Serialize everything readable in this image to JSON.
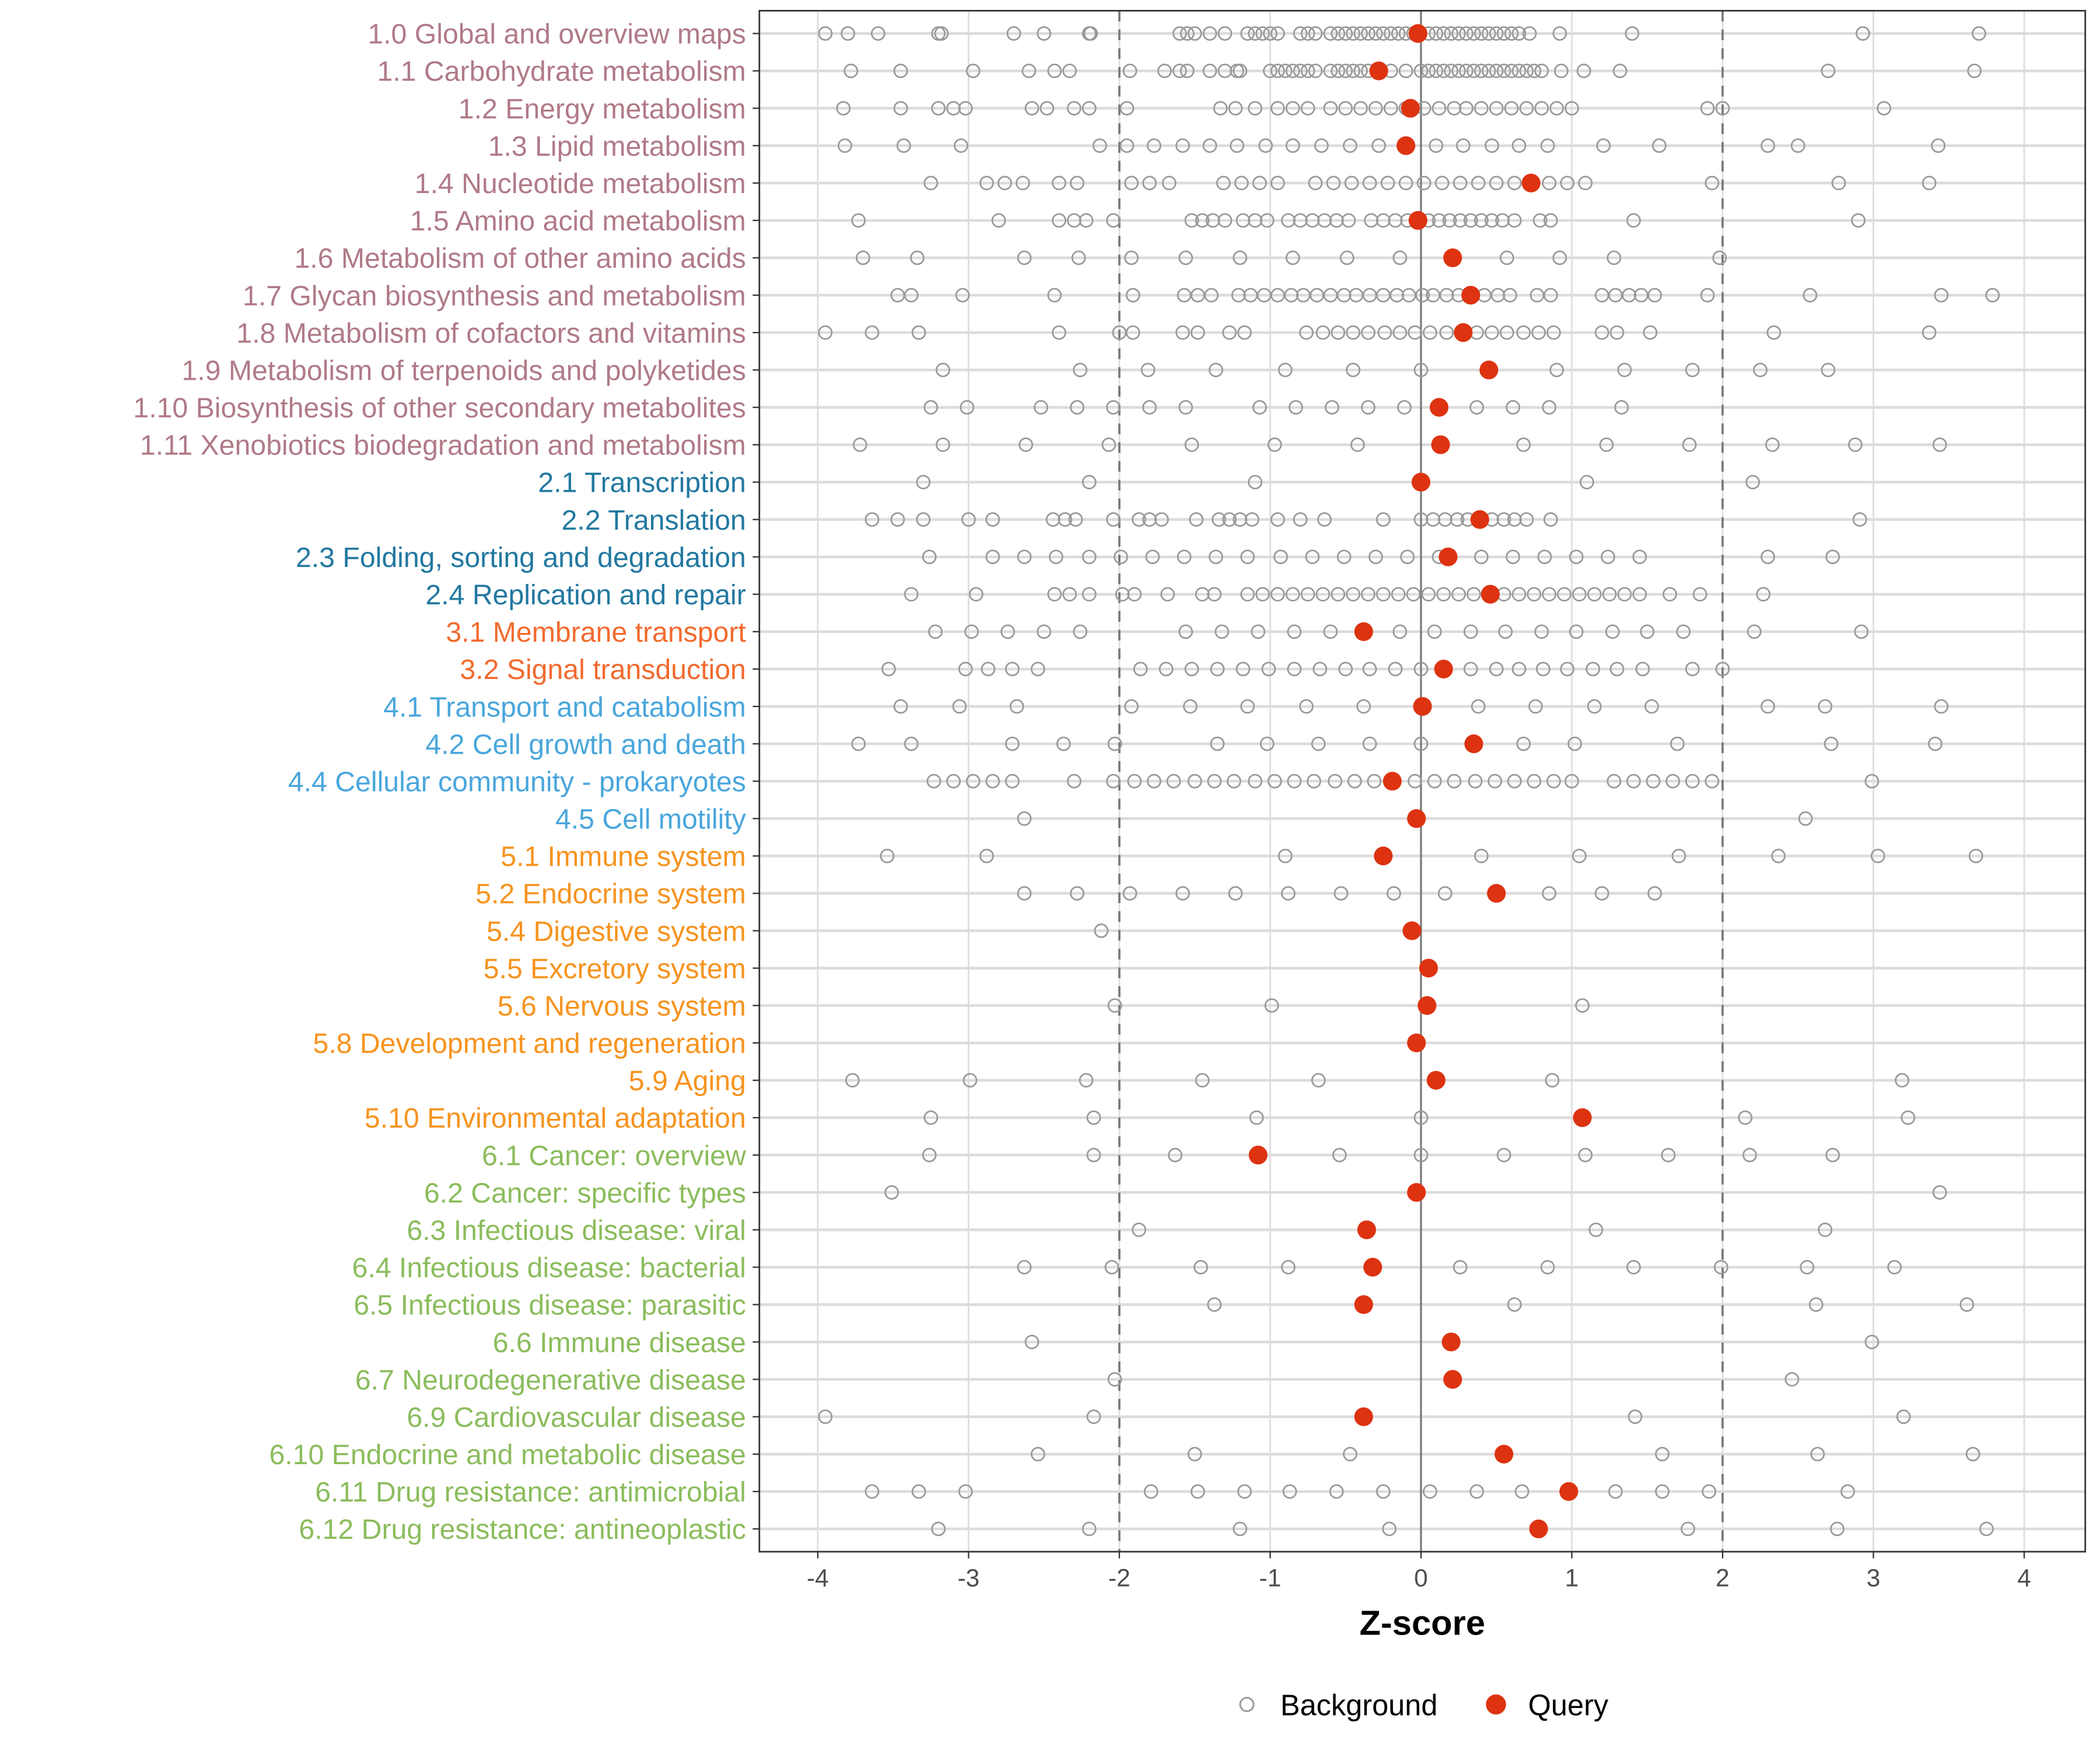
{
  "chart_data": {
    "type": "scatter",
    "xlabel": "Z-score",
    "ylabel": "",
    "xlim": [
      -4.36,
      4.43
    ],
    "xticks": [
      -4,
      -3,
      -2,
      -1,
      0,
      1,
      2,
      3,
      4
    ],
    "xtick_labels": [
      "-4",
      "-3",
      "-2",
      "-1",
      "0",
      "1",
      "2",
      "3",
      "4"
    ],
    "reference_lines": {
      "solid": 0,
      "dashed": [
        -2,
        2
      ]
    },
    "grid": true,
    "legend": {
      "placement": "bottom",
      "entries": [
        "Background",
        "Query"
      ]
    },
    "colors": {
      "background_point": "#999999",
      "query_point": "#DD3311",
      "groups": {
        "1": "#B07A87",
        "2": "#2278A0",
        "3": "#F26A2E",
        "4": "#49A6DC",
        "5": "#F7931E",
        "6": "#8BBC5C"
      }
    },
    "categories": [
      {
        "label": "1.0 Global and overview maps",
        "group": "1",
        "query": -0.02,
        "background": [
          -3.95,
          -3.8,
          -3.6,
          -3.2,
          -3.18,
          -2.7,
          -2.5,
          -2.2,
          -2.19,
          -1.6,
          -1.55,
          -1.5,
          -1.4,
          -1.3,
          -1.15,
          -1.1,
          -1.05,
          -1.0,
          -0.95,
          -0.8,
          -0.75,
          -0.7,
          -0.6,
          -0.55,
          -0.5,
          -0.45,
          -0.4,
          -0.35,
          -0.3,
          -0.25,
          -0.2,
          -0.15,
          -0.1,
          -0.05,
          0.05,
          0.1,
          0.15,
          0.2,
          0.25,
          0.3,
          0.35,
          0.4,
          0.45,
          0.5,
          0.55,
          0.6,
          0.65,
          0.72,
          0.92,
          1.4,
          2.93,
          3.7
        ]
      },
      {
        "label": "1.1 Carbohydrate metabolism",
        "group": "1",
        "query": -0.28,
        "background": [
          -3.78,
          -3.45,
          -2.97,
          -2.6,
          -2.43,
          -2.33,
          -1.93,
          -1.7,
          -1.6,
          -1.55,
          -1.4,
          -1.3,
          -1.22,
          -1.2,
          -1.0,
          -0.95,
          -0.9,
          -0.85,
          -0.8,
          -0.75,
          -0.7,
          -0.6,
          -0.55,
          -0.5,
          -0.45,
          -0.4,
          -0.35,
          -0.2,
          -0.1,
          0.0,
          0.05,
          0.1,
          0.15,
          0.2,
          0.25,
          0.3,
          0.35,
          0.4,
          0.45,
          0.5,
          0.55,
          0.6,
          0.65,
          0.7,
          0.75,
          0.8,
          0.93,
          1.08,
          1.32,
          2.7,
          3.67
        ]
      },
      {
        "label": "1.2 Energy metabolism",
        "group": "1",
        "query": -0.07,
        "background": [
          -3.83,
          -3.45,
          -3.2,
          -3.1,
          -3.02,
          -2.58,
          -2.48,
          -2.3,
          -2.2,
          -1.95,
          -1.33,
          -1.23,
          -1.1,
          -0.95,
          -0.85,
          -0.75,
          -0.6,
          -0.5,
          -0.4,
          -0.3,
          -0.2,
          -0.1,
          0.02,
          0.12,
          0.22,
          0.3,
          0.4,
          0.5,
          0.6,
          0.7,
          0.8,
          0.9,
          1.0,
          1.9,
          2.0,
          3.07
        ]
      },
      {
        "label": "1.3 Lipid metabolism",
        "group": "1",
        "query": -0.1,
        "background": [
          -3.82,
          -3.43,
          -3.05,
          -2.13,
          -1.95,
          -1.77,
          -1.58,
          -1.4,
          -1.22,
          -1.03,
          -0.85,
          -0.66,
          -0.47,
          -0.28,
          -0.1,
          0.1,
          0.28,
          0.47,
          0.65,
          0.84,
          1.21,
          1.58,
          2.3,
          2.5,
          3.43
        ]
      },
      {
        "label": "1.4 Nucleotide metabolism",
        "group": "1",
        "query": 0.73,
        "background": [
          -3.25,
          -2.88,
          -2.76,
          -2.64,
          -2.4,
          -2.28,
          -1.92,
          -1.8,
          -1.67,
          -1.31,
          -1.19,
          -1.07,
          -0.95,
          -0.7,
          -0.58,
          -0.46,
          -0.34,
          -0.22,
          -0.1,
          0.02,
          0.14,
          0.26,
          0.38,
          0.5,
          0.62,
          0.85,
          0.97,
          1.09,
          1.93,
          2.77,
          3.37
        ]
      },
      {
        "label": "1.5 Amino acid metabolism",
        "group": "1",
        "query": -0.02,
        "background": [
          -3.73,
          -2.8,
          -2.4,
          -2.3,
          -2.22,
          -2.04,
          -1.52,
          -1.45,
          -1.38,
          -1.3,
          -1.18,
          -1.1,
          -1.02,
          -0.88,
          -0.8,
          -0.72,
          -0.64,
          -0.56,
          -0.48,
          -0.33,
          -0.25,
          -0.17,
          -0.09,
          0.05,
          0.12,
          0.19,
          0.26,
          0.33,
          0.4,
          0.47,
          0.54,
          0.62,
          0.79,
          0.86,
          1.41,
          2.9
        ]
      },
      {
        "label": "1.6 Metabolism of other amino acids",
        "group": "1",
        "query": 0.21,
        "background": [
          -3.7,
          -3.34,
          -2.63,
          -2.27,
          -1.92,
          -1.56,
          -1.2,
          -0.85,
          -0.49,
          -0.14,
          0.22,
          0.57,
          0.92,
          1.28,
          1.98
        ]
      },
      {
        "label": "1.7 Glycan biosynthesis and metabolism",
        "group": "1",
        "query": 0.33,
        "background": [
          -3.47,
          -3.38,
          -3.04,
          -2.43,
          -1.91,
          -1.57,
          -1.48,
          -1.39,
          -1.21,
          -1.13,
          -1.04,
          -0.95,
          -0.86,
          -0.78,
          -0.69,
          -0.6,
          -0.51,
          -0.43,
          -0.34,
          -0.25,
          -0.16,
          -0.08,
          0.01,
          0.08,
          0.17,
          0.25,
          0.42,
          0.51,
          0.59,
          0.77,
          0.86,
          1.2,
          1.29,
          1.38,
          1.46,
          1.55,
          1.9,
          2.58,
          3.45,
          3.79
        ]
      },
      {
        "label": "1.8 Metabolism of cofactors and vitamins",
        "group": "1",
        "query": 0.28,
        "background": [
          -3.95,
          -3.64,
          -3.33,
          -2.4,
          -2.0,
          -1.91,
          -1.58,
          -1.48,
          -1.27,
          -1.17,
          -0.76,
          -0.65,
          -0.55,
          -0.45,
          -0.35,
          -0.24,
          -0.14,
          -0.04,
          0.06,
          0.17,
          0.37,
          0.47,
          0.57,
          0.68,
          0.78,
          0.88,
          1.2,
          1.3,
          1.52,
          2.34,
          3.37
        ]
      },
      {
        "label": "1.9 Metabolism of terpenoids and polyketides",
        "group": "1",
        "query": 0.45,
        "background": [
          -3.17,
          -2.26,
          -1.81,
          -1.36,
          -0.9,
          -0.45,
          0.0,
          0.9,
          1.35,
          1.8,
          2.25,
          2.7
        ]
      },
      {
        "label": "1.10 Biosynthesis of other secondary metabolites",
        "group": "1",
        "query": 0.12,
        "background": [
          -3.25,
          -3.01,
          -2.52,
          -2.28,
          -2.04,
          -1.8,
          -1.56,
          -1.07,
          -0.83,
          -0.59,
          -0.35,
          -0.11,
          0.37,
          0.61,
          0.85,
          1.33
        ]
      },
      {
        "label": "1.11 Xenobiotics biodegradation and metabolism",
        "group": "1",
        "query": 0.13,
        "background": [
          -3.72,
          -3.17,
          -2.62,
          -2.07,
          -1.52,
          -0.97,
          -0.42,
          0.68,
          1.23,
          1.78,
          2.33,
          2.88,
          3.44
        ]
      },
      {
        "label": "2.1 Transcription",
        "group": "2",
        "query": 0.0,
        "background": [
          -3.3,
          -2.2,
          -1.1,
          1.1,
          2.2
        ]
      },
      {
        "label": "2.2 Translation",
        "group": "2",
        "query": 0.39,
        "background": [
          -3.64,
          -3.47,
          -3.3,
          -3.0,
          -2.84,
          -2.44,
          -2.36,
          -2.29,
          -2.04,
          -1.87,
          -1.8,
          -1.72,
          -1.49,
          -1.34,
          -1.27,
          -1.2,
          -1.12,
          -0.95,
          -0.8,
          -0.64,
          -0.25,
          0.0,
          0.08,
          0.16,
          0.24,
          0.31,
          0.47,
          0.55,
          0.62,
          0.7,
          0.86,
          2.91
        ]
      },
      {
        "label": "2.3 Folding, sorting and degradation",
        "group": "2",
        "query": 0.18,
        "background": [
          -3.26,
          -2.84,
          -2.63,
          -2.42,
          -2.2,
          -1.99,
          -1.78,
          -1.57,
          -1.36,
          -1.15,
          -0.93,
          -0.72,
          -0.51,
          -0.3,
          -0.09,
          0.12,
          0.4,
          0.61,
          0.82,
          1.03,
          1.24,
          1.45,
          2.3,
          2.73
        ]
      },
      {
        "label": "2.4 Replication and repair",
        "group": "2",
        "query": 0.46,
        "background": [
          -3.38,
          -2.95,
          -2.43,
          -2.33,
          -2.2,
          -1.98,
          -1.9,
          -1.68,
          -1.45,
          -1.37,
          -1.15,
          -1.05,
          -0.95,
          -0.85,
          -0.75,
          -0.65,
          -0.55,
          -0.45,
          -0.35,
          -0.25,
          -0.15,
          -0.05,
          0.05,
          0.15,
          0.25,
          0.35,
          0.55,
          0.65,
          0.75,
          0.85,
          0.95,
          1.05,
          1.15,
          1.25,
          1.35,
          1.45,
          1.65,
          1.85,
          2.27
        ]
      },
      {
        "label": "3.1 Membrane transport",
        "group": "3",
        "query": -0.38,
        "background": [
          -3.22,
          -2.98,
          -2.74,
          -2.5,
          -2.26,
          -1.56,
          -1.32,
          -1.08,
          -0.84,
          -0.6,
          -0.14,
          0.09,
          0.33,
          0.56,
          0.8,
          1.03,
          1.27,
          1.5,
          1.74,
          2.21,
          2.92
        ]
      },
      {
        "label": "3.2 Signal transduction",
        "group": "3",
        "query": 0.15,
        "background": [
          -3.53,
          -3.02,
          -2.87,
          -2.71,
          -2.54,
          -1.86,
          -1.69,
          -1.52,
          -1.35,
          -1.18,
          -1.01,
          -0.84,
          -0.67,
          -0.5,
          -0.34,
          -0.17,
          0.0,
          0.33,
          0.5,
          0.65,
          0.81,
          0.97,
          1.14,
          1.3,
          1.47,
          1.8,
          2.0
        ]
      },
      {
        "label": "4.1 Transport and catabolism",
        "group": "4",
        "query": 0.01,
        "background": [
          -3.45,
          -3.06,
          -2.68,
          -1.92,
          -1.53,
          -1.15,
          -0.76,
          -0.38,
          0.38,
          0.76,
          1.15,
          1.53,
          2.3,
          2.68,
          3.45
        ]
      },
      {
        "label": "4.2 Cell growth and death",
        "group": "4",
        "query": 0.35,
        "background": [
          -3.73,
          -3.38,
          -2.71,
          -2.37,
          -2.03,
          -1.35,
          -1.02,
          -0.68,
          -0.34,
          0.0,
          0.68,
          1.02,
          1.7,
          2.72,
          3.41
        ]
      },
      {
        "label": "4.4 Cellular community - prokaryotes",
        "group": "4",
        "query": -0.19,
        "background": [
          -3.23,
          -3.1,
          -2.97,
          -2.84,
          -2.71,
          -2.3,
          -2.04,
          -1.9,
          -1.77,
          -1.64,
          -1.5,
          -1.37,
          -1.24,
          -1.1,
          -0.97,
          -0.84,
          -0.71,
          -0.57,
          -0.44,
          -0.31,
          -0.04,
          0.09,
          0.22,
          0.36,
          0.49,
          0.62,
          0.75,
          0.88,
          1.0,
          1.28,
          1.41,
          1.54,
          1.67,
          1.8,
          1.93,
          2.99
        ]
      },
      {
        "label": "4.5 Cell motility",
        "group": "4",
        "query": -0.03,
        "background": [
          -2.63,
          2.55
        ]
      },
      {
        "label": "5.1 Immune system",
        "group": "5",
        "query": -0.25,
        "background": [
          -3.54,
          -2.88,
          -0.9,
          0.4,
          1.05,
          1.71,
          2.37,
          3.03,
          3.68
        ]
      },
      {
        "label": "5.2 Endocrine system",
        "group": "5",
        "query": 0.5,
        "background": [
          -2.63,
          -2.28,
          -1.93,
          -1.58,
          -1.23,
          -0.88,
          -0.53,
          -0.18,
          0.16,
          0.85,
          1.2,
          1.55
        ]
      },
      {
        "label": "5.4 Digestive system",
        "group": "5",
        "query": -0.06,
        "background": [
          -2.12
        ]
      },
      {
        "label": "5.5 Excretory system",
        "group": "5",
        "query": 0.05,
        "background": []
      },
      {
        "label": "5.6 Nervous system",
        "group": "5",
        "query": 0.04,
        "background": [
          -2.03,
          -0.99,
          1.07
        ]
      },
      {
        "label": "5.8 Development and regeneration",
        "group": "5",
        "query": -0.03,
        "background": []
      },
      {
        "label": "5.9 Aging",
        "group": "5",
        "query": 0.1,
        "background": [
          -3.77,
          -2.99,
          -2.22,
          -1.45,
          -0.68,
          0.87,
          3.19
        ]
      },
      {
        "label": "5.10 Environmental adaptation",
        "group": "5",
        "query": 1.07,
        "background": [
          -3.25,
          -2.17,
          -1.09,
          0.0,
          2.15,
          3.23
        ]
      },
      {
        "label": "6.1 Cancer: overview",
        "group": "6",
        "query": -1.08,
        "background": [
          -3.26,
          -2.17,
          -1.63,
          -0.54,
          0.0,
          0.55,
          1.09,
          1.64,
          2.18,
          2.73
        ]
      },
      {
        "label": "6.2 Cancer: specific types",
        "group": "6",
        "query": -0.03,
        "background": [
          -3.51,
          3.44
        ]
      },
      {
        "label": "6.3 Infectious disease: viral",
        "group": "6",
        "query": -0.36,
        "background": [
          -1.87,
          1.16,
          2.68
        ]
      },
      {
        "label": "6.4 Infectious disease: bacterial",
        "group": "6",
        "query": -0.32,
        "background": [
          -2.63,
          -2.05,
          -1.46,
          -0.88,
          0.26,
          0.84,
          1.41,
          1.99,
          2.56,
          3.14
        ]
      },
      {
        "label": "6.5 Infectious disease: parasitic",
        "group": "6",
        "query": -0.38,
        "background": [
          -1.37,
          0.62,
          2.62,
          3.62
        ]
      },
      {
        "label": "6.6 Immune disease",
        "group": "6",
        "query": 0.2,
        "background": [
          -2.58,
          2.99
        ]
      },
      {
        "label": "6.7 Neurodegenerative disease",
        "group": "6",
        "query": 0.21,
        "background": [
          -2.03,
          2.46
        ]
      },
      {
        "label": "6.9 Cardiovascular disease",
        "group": "6",
        "query": -0.38,
        "background": [
          -3.95,
          -2.17,
          1.42,
          3.2
        ]
      },
      {
        "label": "6.10 Endocrine and metabolic disease",
        "group": "6",
        "query": 0.55,
        "background": [
          -2.54,
          -1.5,
          -0.47,
          1.6,
          2.63,
          3.66
        ]
      },
      {
        "label": "6.11 Drug resistance: antimicrobial",
        "group": "6",
        "query": 0.98,
        "background": [
          -3.64,
          -3.33,
          -3.02,
          -1.79,
          -1.48,
          -1.17,
          -0.87,
          -0.56,
          -0.25,
          0.06,
          0.37,
          0.67,
          1.29,
          1.6,
          1.91,
          2.83
        ]
      },
      {
        "label": "6.12 Drug resistance: antineoplastic",
        "group": "6",
        "query": 0.78,
        "background": [
          -3.2,
          -2.2,
          -1.2,
          -0.21,
          1.77,
          2.76,
          3.75
        ]
      }
    ]
  }
}
